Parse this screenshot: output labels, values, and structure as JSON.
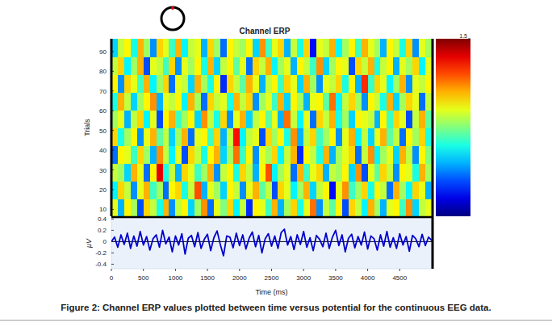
{
  "caption": "Figure 2: Channel ERP values plotted between time versus potential for the continuous EEG data.",
  "chart_data": [
    {
      "type": "heatmap",
      "title": "Channel ERP",
      "ylabel": "Trials",
      "xlim": [
        0,
        5000
      ],
      "ylim": [
        6.5,
        96.5
      ],
      "yticks": [
        10,
        20,
        30,
        40,
        50,
        60,
        70,
        80,
        90
      ],
      "tick_labels": "y",
      "color_range": [
        -1.5,
        1.5
      ],
      "color_ticks": [
        1.5
      ],
      "cells": [
        [
          0.3,
          -0.6,
          0.4,
          0.1,
          -0.9,
          0.5,
          0.2,
          -0.3,
          0.6,
          -0.7,
          0.2,
          0.4,
          -0.5,
          0.1,
          0.7,
          -0.8,
          0.3,
          0.0,
          0.5,
          -0.4,
          0.2,
          -1.0,
          0.4,
          0.3,
          -0.2,
          0.6,
          -0.6,
          0.1,
          0.5,
          -0.3,
          0.3,
          0.8,
          -0.7,
          0.2,
          -0.1,
          0.4,
          -0.9,
          0.5,
          0.2,
          -0.4,
          0.6,
          0.1,
          -0.6,
          0.3,
          0.4,
          -0.2,
          0.7,
          -0.5,
          0.2,
          0.3
        ],
        [
          -0.4,
          0.5,
          0.2,
          -0.7,
          0.3,
          0.6,
          -0.2,
          0.1,
          -0.8,
          0.4,
          0.5,
          -0.3,
          0.2,
          0.9,
          -0.6,
          0.3,
          0.1,
          -0.5,
          0.4,
          0.2,
          -0.7,
          0.3,
          0.6,
          -0.1,
          0.2,
          -0.9,
          0.5,
          0.3,
          -0.4,
          0.1,
          0.6,
          -0.5,
          0.2,
          0.4,
          -1.1,
          0.3,
          0.7,
          -0.2,
          0.1,
          0.5,
          -0.3,
          0.4,
          0.2,
          -0.8,
          0.6,
          0.1,
          -0.4,
          0.5,
          0.3,
          -0.6
        ],
        [
          0.2,
          0.1,
          -0.5,
          0.6,
          0.3,
          -0.8,
          0.4,
          1.2,
          -0.3,
          0.2,
          -0.6,
          0.5,
          0.3,
          -0.2,
          0.1,
          0.6,
          -0.7,
          0.2,
          0.4,
          -0.3,
          0.5,
          0.2,
          -0.6,
          0.4,
          0.9,
          -0.4,
          0.1,
          0.3,
          -0.8,
          0.6,
          -0.2,
          0.3,
          0.5,
          -0.6,
          0.2,
          0.1,
          0.4,
          -0.5,
          0.7,
          -0.9,
          0.3,
          -0.1,
          0.5,
          0.2,
          -0.7,
          0.4,
          0.3,
          -0.3,
          0.6,
          0.1
        ],
        [
          -0.8,
          0.4,
          0.3,
          -0.2,
          0.5,
          0.1,
          -0.6,
          0.7,
          0.2,
          -0.4,
          0.3,
          -0.9,
          0.5,
          0.2,
          -0.3,
          0.4,
          0.6,
          -0.5,
          0.1,
          0.8,
          -0.2,
          0.4,
          -0.7,
          0.3,
          0.1,
          0.5,
          -0.4,
          0.2,
          0.6,
          -1.0,
          0.4,
          0.2,
          -0.3,
          0.6,
          -0.6,
          0.1,
          0.3,
          0.5,
          -0.8,
          0.2,
          0.7,
          -0.4,
          0.1,
          0.3,
          -0.5,
          0.6,
          0.2,
          -0.7,
          0.4,
          0.0
        ],
        [
          0.5,
          -0.3,
          0.1,
          0.4,
          -0.7,
          0.3,
          0.6,
          -0.1,
          0.2,
          -0.5,
          0.1,
          0.6,
          -0.8,
          0.3,
          0.4,
          -0.2,
          0.5,
          -0.6,
          0.2,
          1.1,
          -0.4,
          0.2,
          0.3,
          -0.9,
          0.5,
          0.1,
          0.4,
          -0.3,
          0.7,
          -0.6,
          0.2,
          0.5,
          -0.2,
          0.1,
          0.4,
          -0.7,
          0.3,
          0.6,
          -0.4,
          0.2,
          -0.5,
          0.3,
          0.6,
          -0.1,
          0.2,
          -0.8,
          0.4,
          0.1,
          0.5,
          -0.3
        ],
        [
          0.1,
          0.3,
          -0.6,
          0.2,
          0.5,
          -0.4,
          0.3,
          -0.9,
          0.4,
          0.6,
          -0.2,
          0.1,
          0.4,
          -0.5,
          0.7,
          0.2,
          -0.3,
          0.5,
          -0.7,
          0.3,
          0.6,
          -0.5,
          0.2,
          0.4,
          -0.1,
          0.3,
          -0.6,
          0.8,
          0.2,
          -0.4,
          0.3,
          -0.8,
          0.5,
          0.2,
          0.6,
          -0.3,
          0.1,
          -0.5,
          0.4,
          0.3,
          0.2,
          -0.6,
          0.4,
          -0.2,
          0.5,
          0.3,
          -0.9,
          0.2,
          0.6,
          -0.1
        ],
        [
          -0.3,
          0.6,
          0.2,
          -0.5,
          0.1,
          0.4,
          0.7,
          -0.6,
          0.3,
          0.2,
          0.4,
          -0.4,
          0.6,
          0.1,
          -0.8,
          0.5,
          0.2,
          0.3,
          -0.3,
          0.6,
          0.2,
          0.5,
          -0.7,
          0.1,
          0.3,
          -0.2,
          0.6,
          -0.5,
          0.4,
          0.1,
          -0.6,
          0.3,
          0.4,
          -0.1,
          0.8,
          -0.4,
          0.2,
          0.5,
          0.1,
          -0.7,
          0.4,
          0.2,
          -0.3,
          0.6,
          -0.5,
          0.1,
          0.5,
          0.3,
          -0.8,
          0.2
        ],
        [
          0.4,
          -0.7,
          0.5,
          0.3,
          -0.2,
          0.6,
          -0.4,
          0.1,
          0.5,
          -0.8,
          0.3,
          0.2,
          -0.5,
          0.6,
          0.1,
          -0.3,
          0.4,
          -1.0,
          0.5,
          0.2,
          -0.1,
          0.6,
          0.3,
          -0.6,
          0.2,
          0.4,
          -0.2,
          0.5,
          0.3,
          -0.5,
          0.6,
          0.1,
          -0.7,
          0.3,
          0.2,
          0.5,
          -0.3,
          0.4,
          -0.6,
          1.0,
          -0.2,
          0.5,
          0.3,
          -0.4,
          0.1,
          0.6,
          -0.7,
          0.3,
          0.2,
          0.4
        ],
        [
          0.2,
          0.5,
          -0.4,
          0.1,
          0.6,
          -0.9,
          0.3,
          0.2,
          -0.2,
          0.5,
          -0.7,
          0.3,
          0.1,
          0.4,
          -0.3,
          0.6,
          -0.5,
          0.2,
          0.4,
          -0.1,
          0.3,
          -0.8,
          0.5,
          0.2,
          0.6,
          -0.4,
          0.1,
          0.3,
          -0.6,
          0.4,
          0.2,
          -0.2,
          0.7,
          -0.5,
          0.1,
          0.4,
          0.3,
          -0.9,
          0.5,
          0.2,
          0.6,
          -0.3,
          0.2,
          0.4,
          -0.6,
          0.3,
          0.1,
          0.5,
          -0.4,
          0.3
        ],
        [
          -0.5,
          0.2,
          0.4,
          -0.3,
          0.6,
          0.1,
          -0.7,
          0.5,
          0.3,
          -0.2,
          0.6,
          -0.4,
          0.2,
          0.3,
          -0.6,
          0.5,
          0.1,
          -0.8,
          0.4,
          0.2,
          0.1,
          0.4,
          -0.5,
          0.7,
          -0.2,
          0.3,
          0.5,
          -0.6,
          0.2,
          -0.3,
          0.5,
          -1.1,
          0.3,
          0.2,
          0.6,
          -0.4,
          0.1,
          0.4,
          -0.2,
          0.6,
          0.3,
          0.1,
          -0.6,
          0.4,
          0.2,
          -0.3,
          0.5,
          -0.7,
          0.3,
          0.1
        ]
      ]
    },
    {
      "type": "line",
      "xlabel": "Time (ms)",
      "ylabel": "μV",
      "color": "#0000cc",
      "xlim": [
        0,
        5000
      ],
      "ylim": [
        -0.48,
        0.42
      ],
      "xticks": [
        0,
        500,
        1000,
        1500,
        2000,
        2500,
        3000,
        3500,
        4000,
        4500
      ],
      "yticks": [
        -0.4,
        -0.2,
        0,
        0.2,
        0.4
      ],
      "x": [
        0,
        50,
        100,
        150,
        200,
        250,
        300,
        350,
        400,
        450,
        500,
        550,
        600,
        650,
        700,
        750,
        800,
        850,
        900,
        950,
        1000,
        1050,
        1100,
        1150,
        1200,
        1250,
        1300,
        1350,
        1400,
        1450,
        1500,
        1550,
        1600,
        1650,
        1700,
        1750,
        1800,
        1850,
        1900,
        1950,
        2000,
        2050,
        2100,
        2150,
        2200,
        2250,
        2300,
        2350,
        2400,
        2450,
        2500,
        2550,
        2600,
        2650,
        2700,
        2750,
        2800,
        2850,
        2900,
        2950,
        3000,
        3050,
        3100,
        3150,
        3200,
        3250,
        3300,
        3350,
        3400,
        3450,
        3500,
        3550,
        3600,
        3650,
        3700,
        3750,
        3800,
        3850,
        3900,
        3950,
        4000,
        4050,
        4100,
        4150,
        4200,
        4250,
        4300,
        4350,
        4400,
        4450,
        4500,
        4550,
        4600,
        4650,
        4700,
        4750,
        4800,
        4850,
        4900,
        4950,
        5000
      ],
      "values": [
        0.0,
        0.08,
        -0.1,
        0.12,
        -0.05,
        0.15,
        -0.12,
        0.1,
        -0.08,
        0.18,
        -0.06,
        0.09,
        -0.15,
        0.05,
        0.12,
        -0.1,
        0.2,
        -0.04,
        0.08,
        -0.18,
        0.1,
        -0.06,
        0.14,
        -0.22,
        0.06,
        0.11,
        -0.09,
        0.16,
        -0.12,
        0.04,
        0.13,
        -0.16,
        0.07,
        0.19,
        -0.05,
        -0.25,
        0.1,
        0.08,
        -0.11,
        0.15,
        -0.07,
        0.12,
        -0.13,
        0.06,
        0.17,
        -0.09,
        0.11,
        -0.2,
        0.05,
        0.14,
        -0.08,
        0.1,
        -0.12,
        0.16,
        0.22,
        -0.06,
        0.09,
        -0.14,
        0.12,
        -0.05,
        0.18,
        -0.1,
        0.07,
        -0.16,
        0.11,
        0.04,
        -0.09,
        0.15,
        -0.12,
        0.08,
        0.2,
        -0.07,
        0.12,
        -0.18,
        0.06,
        0.13,
        -0.11,
        0.09,
        -0.06,
        0.17,
        -0.13,
        0.1,
        0.05,
        -0.15,
        0.12,
        -0.08,
        0.18,
        -0.1,
        0.07,
        -0.12,
        0.14,
        -0.06,
        0.09,
        -0.17,
        0.11,
        0.05,
        -0.09,
        0.13,
        -0.07,
        0.08,
        0.02
      ]
    }
  ]
}
